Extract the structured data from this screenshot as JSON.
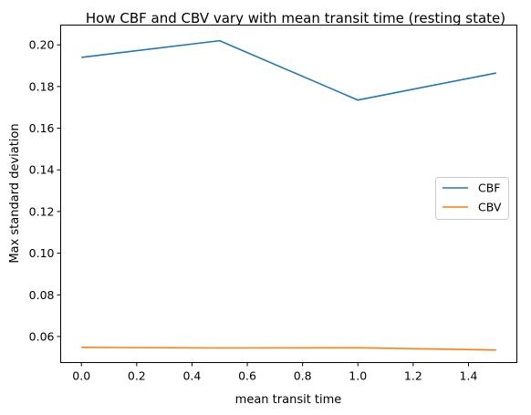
{
  "chart_data": {
    "type": "line",
    "title": "How CBF and CBV vary with mean transit time (resting state)",
    "xlabel": "mean transit time",
    "ylabel": "Max standard deviation",
    "x": [
      0.0,
      0.5,
      1.0,
      1.5
    ],
    "xlim": [
      -0.075,
      1.575
    ],
    "ylim": [
      0.0475,
      0.2095
    ],
    "xticks": [
      0.0,
      0.2,
      0.4,
      0.6,
      0.8,
      1.0,
      1.2,
      1.4
    ],
    "xtick_labels": [
      "0.0",
      "0.2",
      "0.4",
      "0.6",
      "0.8",
      "1.0",
      "1.2",
      "1.4"
    ],
    "yticks": [
      0.06,
      0.08,
      0.1,
      0.12,
      0.14,
      0.16,
      0.18,
      0.2
    ],
    "ytick_labels": [
      "0.06",
      "0.08",
      "0.10",
      "0.12",
      "0.14",
      "0.16",
      "0.18",
      "0.20"
    ],
    "grid": false,
    "legend_position": "center-right",
    "series": [
      {
        "name": "CBF",
        "color": "#1f77b4",
        "values": [
          0.194,
          0.202,
          0.1735,
          0.1865
        ]
      },
      {
        "name": "CBV",
        "color": "#ff7f0e",
        "values": [
          0.0548,
          0.0545,
          0.0546,
          0.0535
        ]
      }
    ]
  }
}
